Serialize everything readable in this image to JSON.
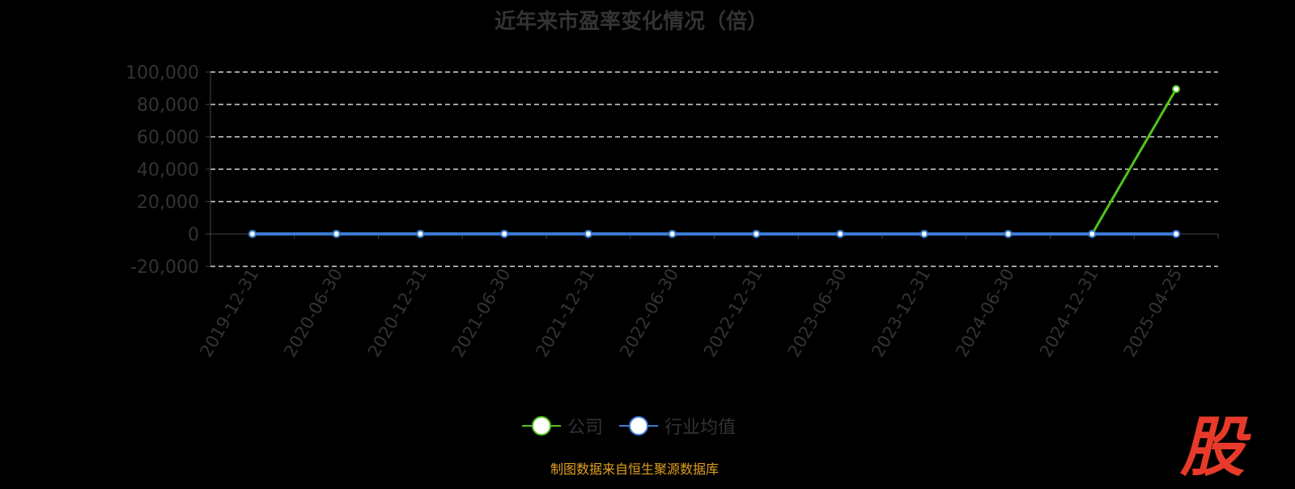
{
  "chart_data": {
    "type": "line",
    "title": "近年来市盈率变化情况（倍）",
    "categories": [
      "2019-12-31",
      "2020-06-30",
      "2020-12-31",
      "2021-06-30",
      "2021-12-31",
      "2022-06-30",
      "2022-12-31",
      "2023-06-30",
      "2023-12-31",
      "2024-06-30",
      "2024-12-31",
      "2025-04-25"
    ],
    "series": [
      {
        "name": "公司",
        "color": "#52c41a",
        "values": [
          40,
          45,
          35,
          38,
          30,
          25,
          28,
          42,
          35,
          25,
          40,
          89500
        ]
      },
      {
        "name": "行业均值",
        "color": "#3a7bd5",
        "values": [
          30,
          32,
          35,
          36,
          34,
          28,
          26,
          30,
          28,
          24,
          27,
          28
        ]
      }
    ],
    "yticks": [
      "100,000",
      "80,000",
      "60,000",
      "40,000",
      "20,000",
      "0",
      "-20,000"
    ],
    "ylim": [
      -20000,
      100000
    ],
    "grid": true,
    "legend": "bottom"
  },
  "source": "制图数据来自恒生聚源数据库",
  "logo_text": "股"
}
